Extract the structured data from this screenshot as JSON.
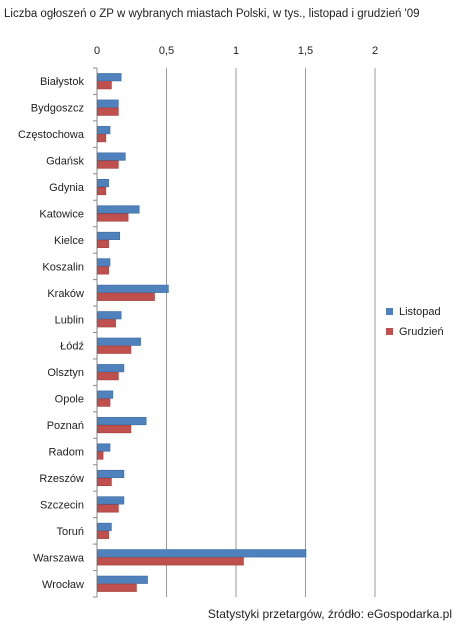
{
  "chart_data": {
    "type": "bar",
    "orientation": "horizontal",
    "title": "Liczba ogłoszeń o ZP w wybranych miastach Polski, w tys., listopad i grudzień '09",
    "source": "Statystyki przetargów, źródło: eGospodarka.pl",
    "xlim": [
      0,
      2
    ],
    "x_ticks": [
      "0",
      "0,5",
      "1",
      "1,5",
      "2"
    ],
    "x_tick_values": [
      0,
      0.5,
      1,
      1.5,
      2
    ],
    "grid": true,
    "legend_position": "right",
    "categories": [
      "Białystok",
      "Bydgoszcz",
      "Częstochowa",
      "Gdańsk",
      "Gdynia",
      "Katowice",
      "Kielce",
      "Koszalin",
      "Kraków",
      "Lublin",
      "Łódź",
      "Olsztyn",
      "Opole",
      "Poznań",
      "Radom",
      "Rzeszów",
      "Szczecin",
      "Toruń",
      "Warszawa",
      "Wrocław"
    ],
    "series": [
      {
        "name": "Listopad",
        "color": "#4f81bd",
        "values": [
          0.17,
          0.15,
          0.09,
          0.2,
          0.08,
          0.3,
          0.16,
          0.09,
          0.51,
          0.17,
          0.31,
          0.19,
          0.11,
          0.35,
          0.09,
          0.19,
          0.19,
          0.1,
          1.5,
          0.36
        ]
      },
      {
        "name": "Grudzień",
        "color": "#c0504d",
        "values": [
          0.1,
          0.15,
          0.06,
          0.15,
          0.06,
          0.22,
          0.08,
          0.08,
          0.41,
          0.13,
          0.24,
          0.15,
          0.09,
          0.24,
          0.04,
          0.1,
          0.15,
          0.08,
          1.05,
          0.28
        ]
      }
    ]
  }
}
